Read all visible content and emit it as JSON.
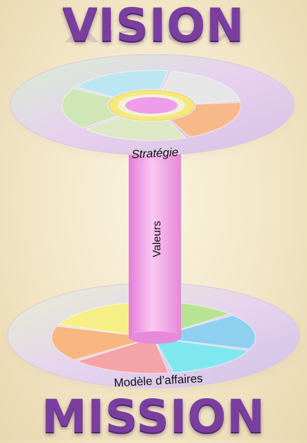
{
  "titles": {
    "top": "VISION",
    "bottom": "MISSION"
  },
  "labels": {
    "top_disc": "Stratégie",
    "pillar": "Valeurs",
    "bottom_disc": "Modèle d’affaires"
  },
  "colors": {
    "title": "#7a3f9e",
    "pillar": "#f3a6e6",
    "disc_outer": "#e2cdea",
    "top_center": "#f0a8ef",
    "top_ring": "#f4e97c",
    "segments_top": [
      "#bde6f3",
      "#e6e6e6",
      "#f7b98a",
      "#dde9c5",
      "#cfe7b6"
    ],
    "segments_bottom": [
      "#f5ef86",
      "#b9e394",
      "#8fd0f1",
      "#7fe8ee",
      "#f4a3a6",
      "#f8b781"
    ]
  }
}
